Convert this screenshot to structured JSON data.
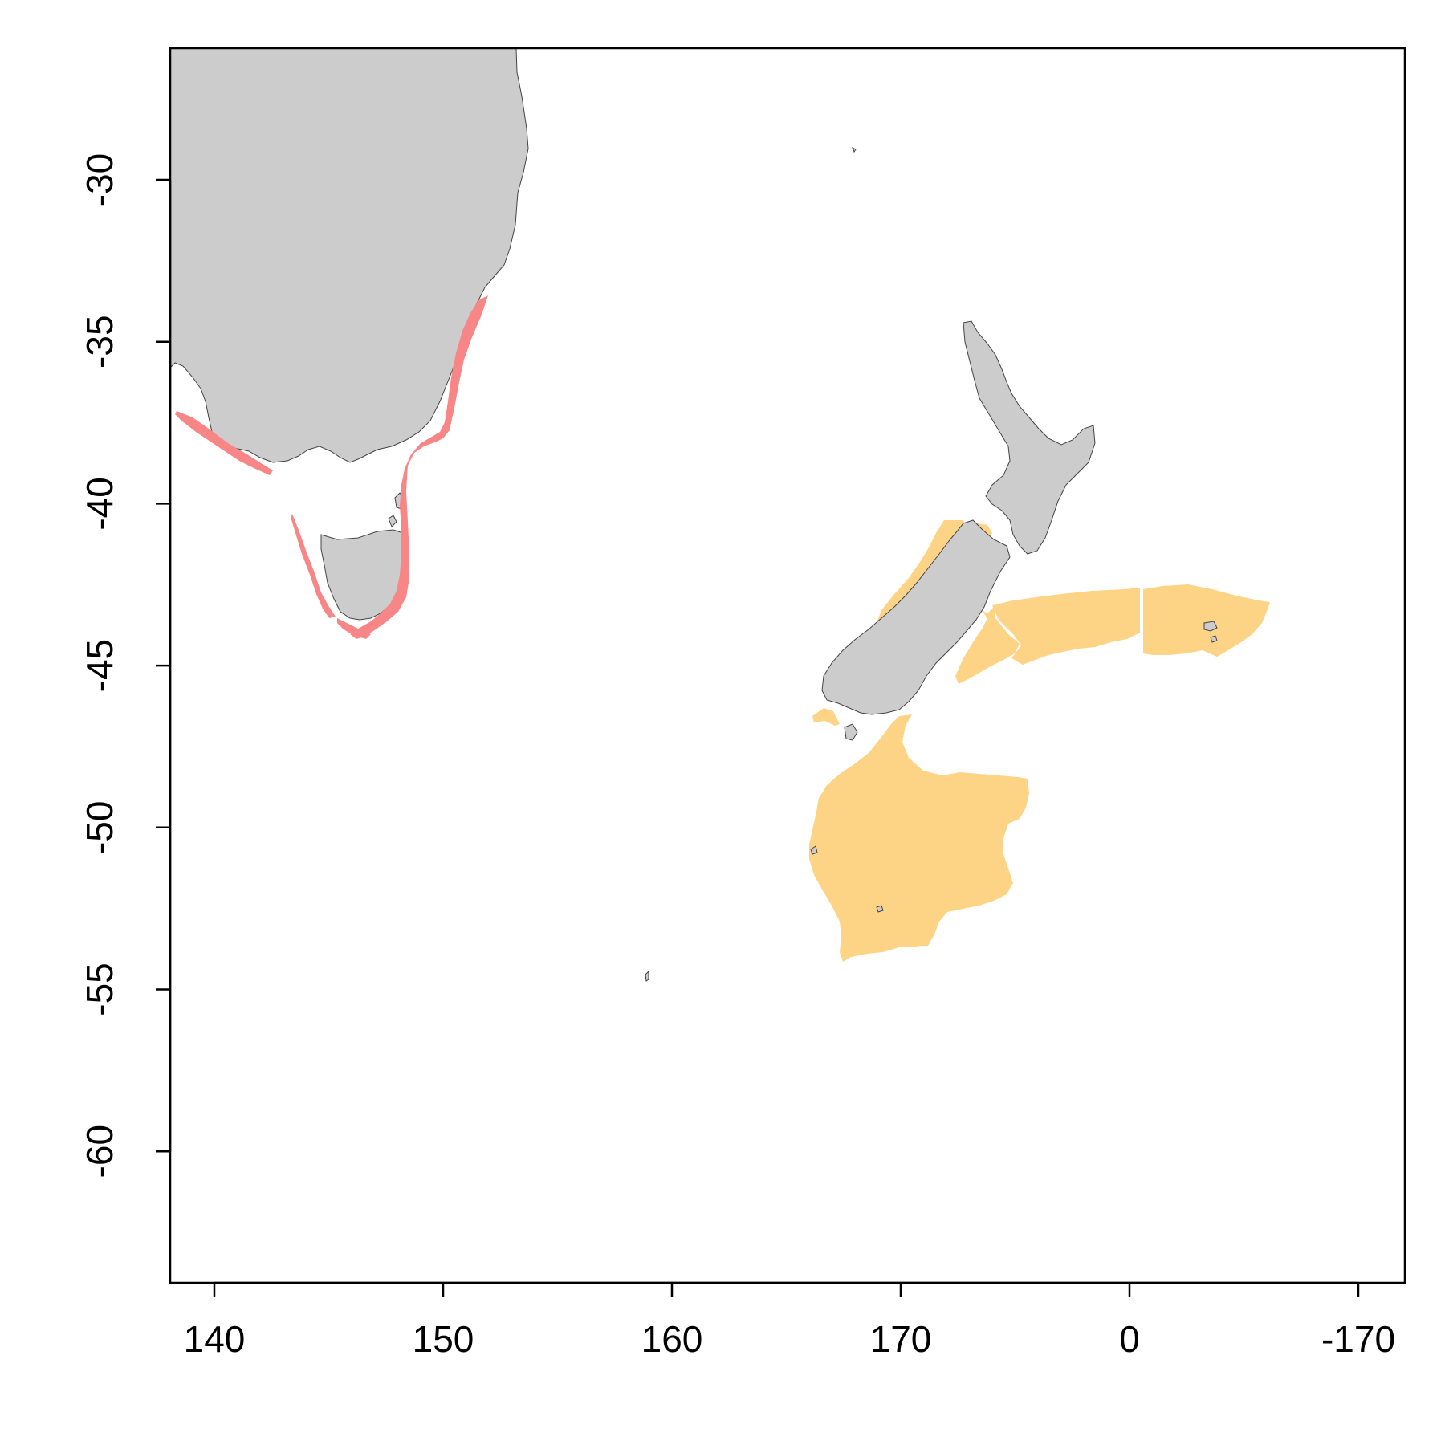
{
  "chart_data": {
    "type": "map",
    "title": "",
    "xlabel": "",
    "ylabel": "",
    "x_ticks": [
      "140",
      "150",
      "160",
      "170",
      "0",
      "-170"
    ],
    "y_ticks": [
      "-30",
      "-35",
      "-40",
      "-45",
      "-50",
      "-55",
      "-60"
    ],
    "xlim": [
      138,
      192
    ],
    "ylim": [
      -64,
      -26
    ],
    "grid": false,
    "legend": "none",
    "colors": {
      "land": "#cccccc",
      "land_border": "#444444",
      "range_australia": "#f88686",
      "range_new_zealand": "#fdd485",
      "background": "#ffffff"
    },
    "regions": [
      {
        "label": "southeast Australia",
        "type": "land"
      },
      {
        "label": "Tasmania",
        "type": "land"
      },
      {
        "label": "North Island",
        "type": "land"
      },
      {
        "label": "South Island",
        "type": "land"
      },
      {
        "label": "Australian coastal range",
        "type": "range"
      },
      {
        "label": "New Zealand range",
        "type": "range"
      }
    ]
  }
}
